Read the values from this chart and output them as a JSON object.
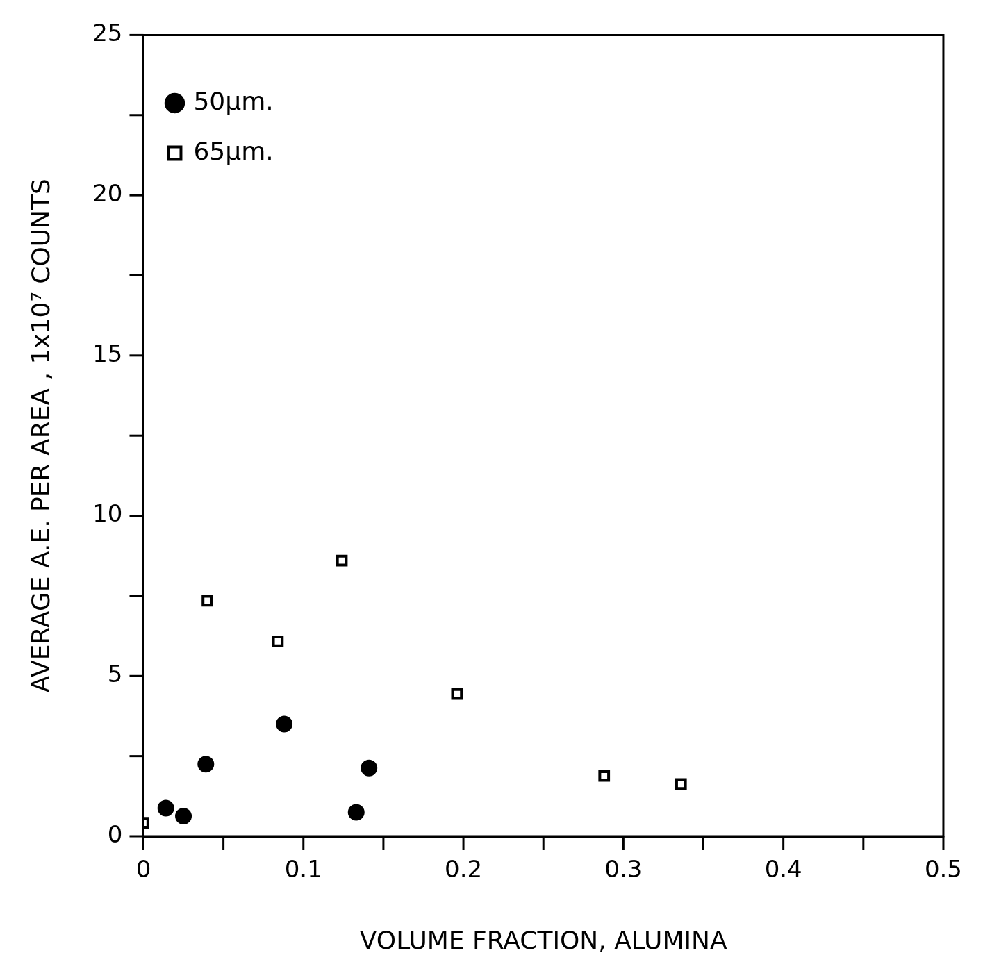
{
  "chart_data": {
    "type": "scatter",
    "xlabel": "VOLUME FRACTION, ALUMINA",
    "ylabel": "AVERAGE A.E. PER AREA , 1x10⁷ COUNTS",
    "xlim": [
      0,
      0.5
    ],
    "xticks": [
      0,
      0.1,
      0.2,
      0.3,
      0.4,
      0.5
    ],
    "ylim": [
      0,
      25
    ],
    "yticks": [
      0,
      5,
      10,
      15,
      20,
      25
    ],
    "grid": false,
    "legend": "top left",
    "series": [
      {
        "name": "50µm.",
        "color": "#000000",
        "marker": "circle",
        "x": [
          0.014,
          0.025,
          0.039,
          0.088,
          0.133,
          0.141
        ],
        "values": [
          0.88,
          0.63,
          2.25,
          3.5,
          0.75,
          2.13
        ]
      },
      {
        "name": "65µm.",
        "color": "#000000",
        "marker": "square",
        "x": [
          0,
          0.04,
          0.084,
          0.124,
          0.196,
          0.288,
          0.336
        ],
        "values": [
          0.42,
          7.35,
          6.08,
          8.6,
          4.44,
          1.88,
          1.63
        ]
      }
    ]
  }
}
